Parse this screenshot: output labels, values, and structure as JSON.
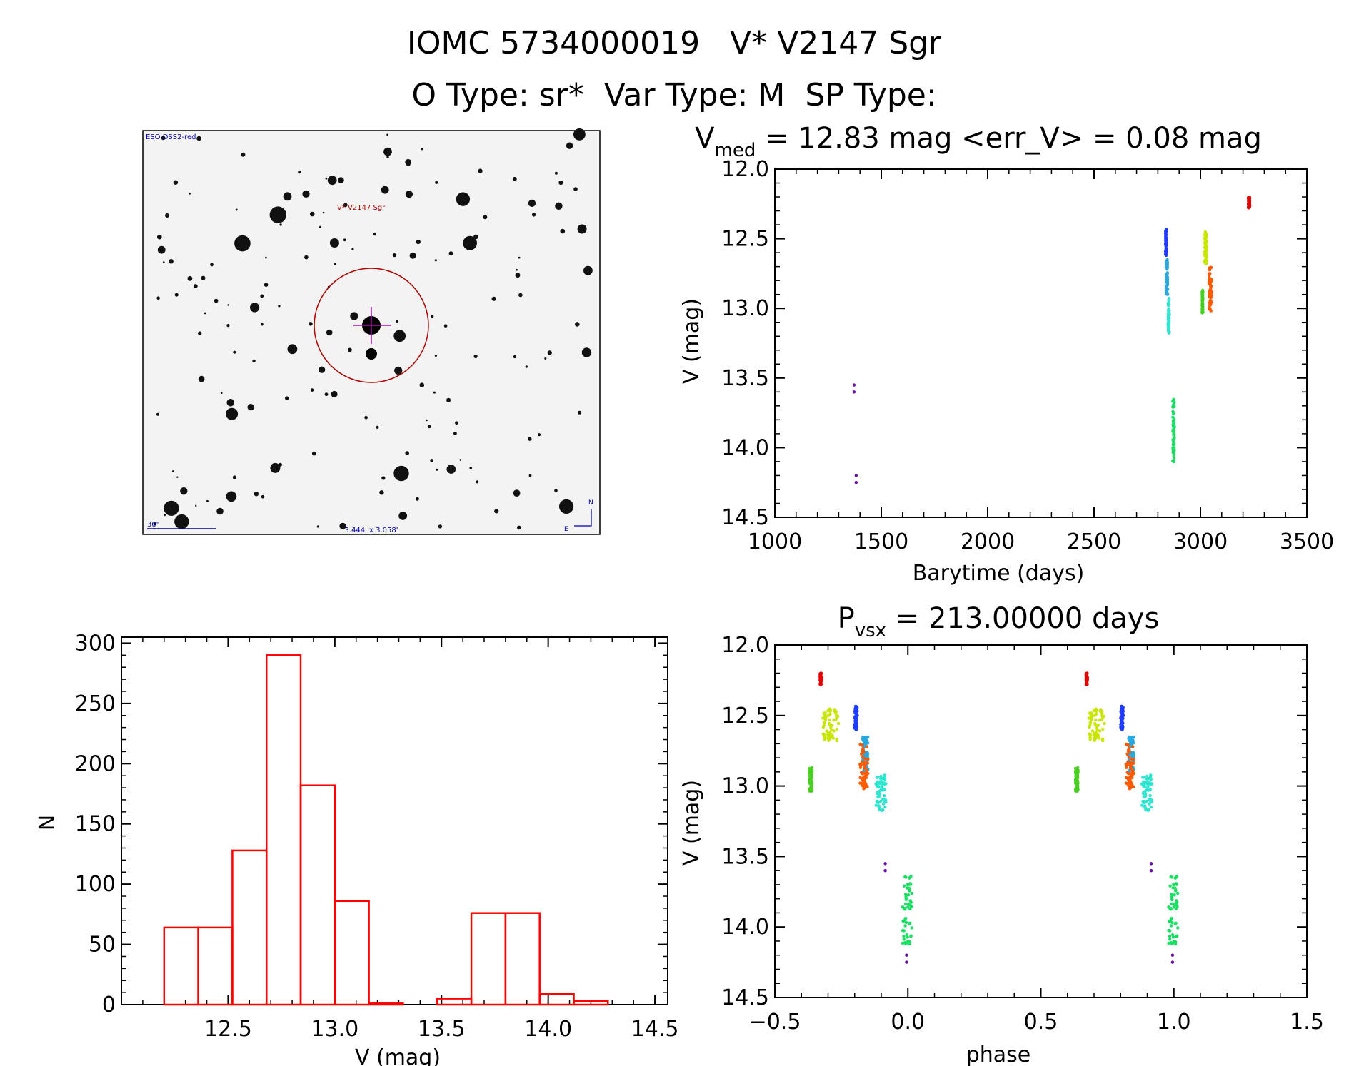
{
  "header": {
    "title": "IOMC 5734000019   V* V2147 Sgr",
    "subtitle": "O Type: sr*  Var Type: M  SP Type:"
  },
  "finder_chart": {
    "survey_label": "ESO DSS2-red",
    "target_label": "V* V2147 Sgr",
    "scale_label": "30\"",
    "fov_label": "3.444' x 3.058'",
    "compass": {
      "north": "N",
      "east": "E"
    }
  },
  "colors": {
    "axis": "#000000",
    "histogram": "#ff0000",
    "marker_circle": "#b00000",
    "crosshair": "#c000c0",
    "annotation_blue": "#0000aa",
    "season_colors": [
      "#6a0dad",
      "#1e3cff",
      "#29a8e0",
      "#2ee6d0",
      "#16e060",
      "#48d020",
      "#c8e600",
      "#ff5a00",
      "#e80000"
    ]
  },
  "chart_data": [
    {
      "type": "scatter",
      "panel": "light-curve",
      "title_main": "V",
      "title_sub": "med",
      "title_rest": " = 12.83 mag <err_V> = 0.08 mag",
      "xlabel": "Barytime (days)",
      "ylabel": "V (mag)",
      "xlim": [
        1000,
        3500
      ],
      "ylim": [
        12.0,
        14.5
      ],
      "y_inverted": true,
      "xticks": [
        1000,
        1500,
        2000,
        2500,
        3000,
        3500
      ],
      "xtick_labels": [
        "1000",
        "1500",
        "2000",
        "2500",
        "3000",
        "3500"
      ],
      "yticks": [
        12.0,
        12.5,
        13.0,
        13.5,
        14.0,
        14.5
      ],
      "ytick_labels": [
        "12.0",
        "12.5",
        "13.0",
        "13.5",
        "14.0",
        "14.5"
      ],
      "series": [
        {
          "color": "#6a0dad",
          "x_range": [
            1372,
            1382
          ],
          "y_range": [
            13.55,
            14.25
          ]
        },
        {
          "color": "#1e3cff",
          "x_range": [
            2836,
            2840
          ],
          "y_range": [
            12.43,
            12.62
          ]
        },
        {
          "color": "#29a8e0",
          "x_range": [
            2840,
            2846
          ],
          "y_range": [
            12.65,
            12.9
          ]
        },
        {
          "color": "#2ee6d0",
          "x_range": [
            2848,
            2854
          ],
          "y_range": [
            12.92,
            13.18
          ]
        },
        {
          "color": "#16e060",
          "x_range": [
            2870,
            2878
          ],
          "y_range": [
            13.63,
            14.12
          ]
        },
        {
          "color": "#48d020",
          "x_range": [
            3008,
            3012
          ],
          "y_range": [
            12.87,
            13.04
          ]
        },
        {
          "color": "#c8e600",
          "x_range": [
            3020,
            3030
          ],
          "y_range": [
            12.45,
            12.68
          ]
        },
        {
          "color": "#ff5a00",
          "x_range": [
            3040,
            3052
          ],
          "y_range": [
            12.7,
            13.02
          ]
        },
        {
          "color": "#e80000",
          "x_range": [
            3225,
            3232
          ],
          "y_range": [
            12.2,
            12.28
          ]
        }
      ]
    },
    {
      "type": "bar",
      "panel": "histogram",
      "xlabel": "V (mag)",
      "ylabel": "N",
      "xlim": [
        12.0,
        14.56
      ],
      "ylim": [
        0,
        305
      ],
      "xticks": [
        12.5,
        13.0,
        13.5,
        14.0,
        14.5
      ],
      "xtick_labels": [
        "12.5",
        "13.0",
        "13.5",
        "14.0",
        "14.5"
      ],
      "yticks": [
        0,
        50,
        100,
        150,
        200,
        250,
        300
      ],
      "ytick_labels": [
        "0",
        "50",
        "100",
        "150",
        "200",
        "250",
        "300"
      ],
      "bin_edges": [
        12.2,
        12.36,
        12.52,
        12.68,
        12.84,
        13.0,
        13.16,
        13.32,
        13.48,
        13.64,
        13.8,
        13.96,
        14.12,
        14.28
      ],
      "values": [
        64,
        64,
        128,
        290,
        182,
        86,
        1,
        0,
        5,
        76,
        76,
        9,
        3
      ]
    },
    {
      "type": "scatter",
      "panel": "phased-light-curve",
      "title_main": "P",
      "title_sub": "vsx",
      "title_rest": " = 213.00000 days",
      "xlabel": "phase",
      "ylabel": "V (mag)",
      "xlim": [
        -0.5,
        1.5
      ],
      "ylim": [
        12.0,
        14.5
      ],
      "y_inverted": true,
      "xticks": [
        -0.5,
        0.0,
        0.5,
        1.0,
        1.5
      ],
      "xtick_labels": [
        "−0.5",
        "0.0",
        "0.5",
        "1.0",
        "1.5"
      ],
      "yticks": [
        12.0,
        12.5,
        13.0,
        13.5,
        14.0,
        14.5
      ],
      "ytick_labels": [
        "12.0",
        "12.5",
        "13.0",
        "13.5",
        "14.0",
        "14.5"
      ],
      "series": [
        {
          "color": "#6a0dad",
          "phase_range": [
            -0.085,
            -0.085
          ],
          "y_range": [
            13.55,
            13.6
          ]
        },
        {
          "color": "#6a0dad",
          "phase_range": [
            -0.005,
            -0.005
          ],
          "y_range": [
            14.2,
            14.25
          ]
        },
        {
          "color": "#1e3cff",
          "phase_range": [
            -0.2,
            -0.19
          ],
          "y_range": [
            12.43,
            12.6
          ]
        },
        {
          "color": "#29a8e0",
          "phase_range": [
            -0.17,
            -0.15
          ],
          "y_range": [
            12.65,
            12.9
          ]
        },
        {
          "color": "#2ee6d0",
          "phase_range": [
            -0.12,
            -0.08
          ],
          "y_range": [
            12.92,
            13.18
          ]
        },
        {
          "color": "#16e060",
          "phase_range": [
            -0.02,
            0.015
          ],
          "y_range": [
            13.63,
            14.12
          ]
        },
        {
          "color": "#48d020",
          "phase_range": [
            -0.37,
            -0.36
          ],
          "y_range": [
            12.87,
            13.04
          ]
        },
        {
          "color": "#c8e600",
          "phase_range": [
            -0.32,
            -0.26
          ],
          "y_range": [
            12.45,
            12.68
          ]
        },
        {
          "color": "#ff5a00",
          "phase_range": [
            -0.18,
            -0.15
          ],
          "y_range": [
            12.7,
            13.02
          ]
        },
        {
          "color": "#e80000",
          "phase_range": [
            -0.33,
            -0.325
          ],
          "y_range": [
            12.2,
            12.28
          ]
        }
      ]
    }
  ]
}
